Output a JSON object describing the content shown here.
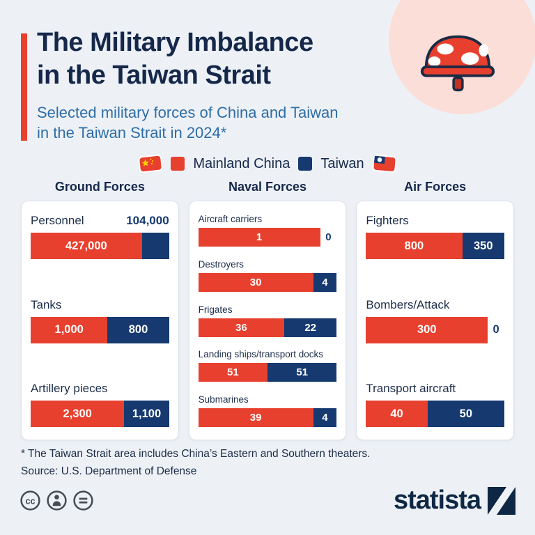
{
  "header": {
    "title_line1": "The Military Imbalance",
    "title_line2": "in the Taiwan Strait",
    "subtitle_line1": "Selected military forces of China and Taiwan",
    "subtitle_line2": "in the Taiwan Strait in 2024*"
  },
  "legend": {
    "china": "Mainland China",
    "taiwan": "Taiwan"
  },
  "colors": {
    "china_red": "#e8402e",
    "taiwan_navy": "#163a70",
    "title": "#16284a",
    "subtitle": "#2e6da6",
    "background": "#edf1f6"
  },
  "chart_data": [
    {
      "type": "bar",
      "group": "Ground Forces",
      "categories": [
        "Personnel",
        "Tanks",
        "Artillery pieces"
      ],
      "series": [
        {
          "name": "Mainland China",
          "values": [
            427000,
            1000,
            2300
          ],
          "labels": [
            "427,000",
            "1,000",
            "2,300"
          ]
        },
        {
          "name": "Taiwan",
          "values": [
            104000,
            800,
            1100
          ],
          "labels": [
            "104,000",
            "800",
            "1,100"
          ]
        }
      ]
    },
    {
      "type": "bar",
      "group": "Naval Forces",
      "categories": [
        "Aircraft carriers",
        "Destroyers",
        "Frigates",
        "Landing ships/transport docks",
        "Submarines"
      ],
      "series": [
        {
          "name": "Mainland China",
          "values": [
            1,
            30,
            36,
            51,
            39
          ],
          "labels": [
            "1",
            "30",
            "36",
            "51",
            "39"
          ]
        },
        {
          "name": "Taiwan",
          "values": [
            0,
            4,
            22,
            51,
            4
          ],
          "labels": [
            "0",
            "4",
            "22",
            "51",
            "4"
          ]
        }
      ]
    },
    {
      "type": "bar",
      "group": "Air Forces",
      "categories": [
        "Fighters",
        "Bombers/Attack",
        "Transport aircraft"
      ],
      "series": [
        {
          "name": "Mainland China",
          "values": [
            800,
            300,
            40
          ],
          "labels": [
            "800",
            "300",
            "40"
          ]
        },
        {
          "name": "Taiwan",
          "values": [
            350,
            0,
            50
          ],
          "labels": [
            "350",
            "0",
            "50"
          ]
        }
      ]
    }
  ],
  "footer": {
    "footnote": "* The Taiwan Strait area includes China’s Eastern and Southern theaters.",
    "source": "Source: U.S. Department of Defense",
    "logo_text": "statista"
  }
}
